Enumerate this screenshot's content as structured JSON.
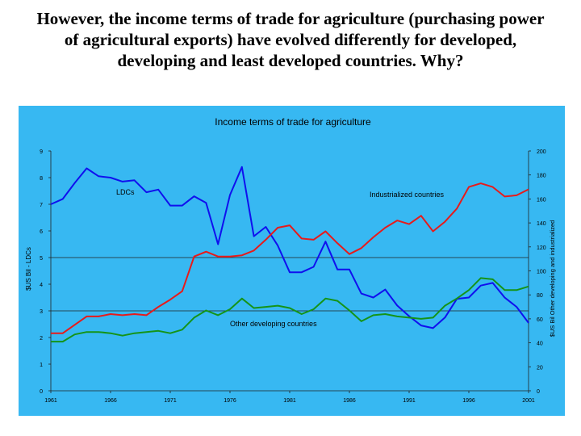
{
  "slide": {
    "title": "However, the income terms of trade for agriculture (purchasing power of agricultural exports) have evolved differently for developed, developing and least developed countries. Why?"
  },
  "chart_data": {
    "type": "line",
    "title": "Income terms of trade for agriculture",
    "ylabel_left": "$US Bil - LDCs",
    "ylabel_right": "$US Bil Other developing and industrialized",
    "x_range": [
      1961,
      2001
    ],
    "x_ticks": [
      "1961",
      "1966",
      "1971",
      "1976",
      "1981",
      "1986",
      "1991",
      "1996",
      "2001"
    ],
    "y_left_range": [
      0,
      9
    ],
    "y_left_ticks": [
      "0",
      "1",
      "2",
      "3",
      "4",
      "5",
      "6",
      "7",
      "8",
      "9"
    ],
    "y_right_range": [
      0,
      200
    ],
    "y_right_ticks": [
      "0",
      "20",
      "40",
      "60",
      "80",
      "100",
      "120",
      "140",
      "160",
      "180",
      "200"
    ],
    "gridlines_at_left": [
      3,
      5
    ],
    "series": [
      {
        "name": "LDCs",
        "axis": "left",
        "color": "#1010ee",
        "x": [
          1961,
          1962,
          1963,
          1964,
          1965,
          1966,
          1967,
          1968,
          1969,
          1970,
          1971,
          1972,
          1973,
          1974,
          1975,
          1976,
          1977,
          1978,
          1979,
          1980,
          1981,
          1982,
          1983,
          1984,
          1985,
          1986,
          1987,
          1988,
          1989,
          1990,
          1991,
          1992,
          1993,
          1994,
          1995,
          1996,
          1997,
          1998,
          1999,
          2000,
          2001
        ],
        "values": [
          7.0,
          7.2,
          7.8,
          8.35,
          8.05,
          8.0,
          7.85,
          7.9,
          7.45,
          7.55,
          6.95,
          6.95,
          7.3,
          7.05,
          5.5,
          7.35,
          8.4,
          5.8,
          6.15,
          5.45,
          4.45,
          4.45,
          4.65,
          5.6,
          4.55,
          4.55,
          3.65,
          3.5,
          3.8,
          3.2,
          2.8,
          2.45,
          2.35,
          2.75,
          3.45,
          3.5,
          3.95,
          4.05,
          3.5,
          3.15,
          2.55
        ]
      },
      {
        "name": "Industrialized countries",
        "axis": "right",
        "color": "#e81a1a",
        "x": [
          1961,
          1962,
          1963,
          1964,
          1965,
          1966,
          1967,
          1968,
          1969,
          1970,
          1971,
          1972,
          1973,
          1974,
          1975,
          1976,
          1977,
          1978,
          1979,
          1980,
          1981,
          1982,
          1983,
          1984,
          1985,
          1986,
          1987,
          1988,
          1989,
          1990,
          1991,
          1992,
          1993,
          1994,
          1995,
          1996,
          1997,
          1998,
          1999,
          2000,
          2001
        ],
        "values": [
          48,
          48,
          55,
          62,
          62,
          64,
          63,
          64,
          63,
          70,
          76,
          83,
          112,
          116,
          112,
          112,
          113,
          117,
          126,
          136,
          138,
          127,
          126,
          133,
          123,
          114,
          119,
          128,
          136,
          142,
          139,
          146,
          133,
          141,
          152,
          170,
          173,
          170,
          162,
          163,
          168
        ]
      },
      {
        "name": "Other developing countries",
        "axis": "right",
        "color": "#159418",
        "x": [
          1961,
          1962,
          1963,
          1964,
          1965,
          1966,
          1967,
          1968,
          1969,
          1970,
          1971,
          1972,
          1973,
          1974,
          1975,
          1976,
          1977,
          1978,
          1979,
          1980,
          1981,
          1982,
          1983,
          1984,
          1985,
          1986,
          1987,
          1988,
          1989,
          1990,
          1991,
          1992,
          1993,
          1994,
          1995,
          1996,
          1997,
          1998,
          1999,
          2000,
          2001
        ],
        "values": [
          41,
          41,
          47,
          49,
          49,
          48,
          46,
          48,
          49,
          50,
          48,
          51,
          61,
          67,
          63,
          68,
          77,
          69,
          70,
          71,
          69,
          64,
          68,
          77,
          75,
          67,
          58,
          63,
          64,
          62,
          61,
          60,
          61,
          71,
          77,
          84,
          94,
          93,
          84,
          84,
          87
        ]
      }
    ],
    "series_labels_text": [
      "LDCs",
      "Industrialized countries",
      "Other developing countries"
    ],
    "legend": "none",
    "grid": true
  }
}
